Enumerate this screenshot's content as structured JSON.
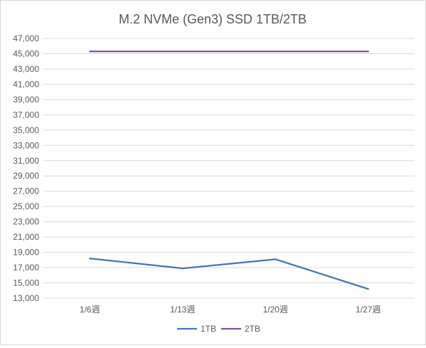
{
  "chart_data": {
    "type": "line",
    "title": "M.2 NVMe (Gen3) SSD 1TB/2TB",
    "xlabel": "",
    "ylabel": "",
    "categories": [
      "1/6週",
      "1/13週",
      "1/20週",
      "1/27週"
    ],
    "series": [
      {
        "name": "1TB",
        "values": [
          18200,
          16900,
          18100,
          14200
        ],
        "color": "#4472c4"
      },
      {
        "name": "2TB",
        "values": [
          45300,
          45300,
          45300,
          45300
        ],
        "color": "#7f4da6"
      }
    ],
    "ylim": [
      13000,
      47000
    ],
    "yticks": [
      13000,
      15000,
      17000,
      19000,
      21000,
      23000,
      25000,
      27000,
      29000,
      31000,
      33000,
      35000,
      37000,
      39000,
      41000,
      43000,
      45000,
      47000
    ],
    "ytick_labels": [
      "13,000",
      "15,000",
      "17,000",
      "19,000",
      "21,000",
      "23,000",
      "25,000",
      "27,000",
      "29,000",
      "31,000",
      "33,000",
      "35,000",
      "37,000",
      "39,000",
      "41,000",
      "43,000",
      "45,000",
      "47,000"
    ],
    "grid": true,
    "legend_position": "bottom",
    "gridline_color": "#d9d9d9",
    "text_color": "#595959"
  }
}
